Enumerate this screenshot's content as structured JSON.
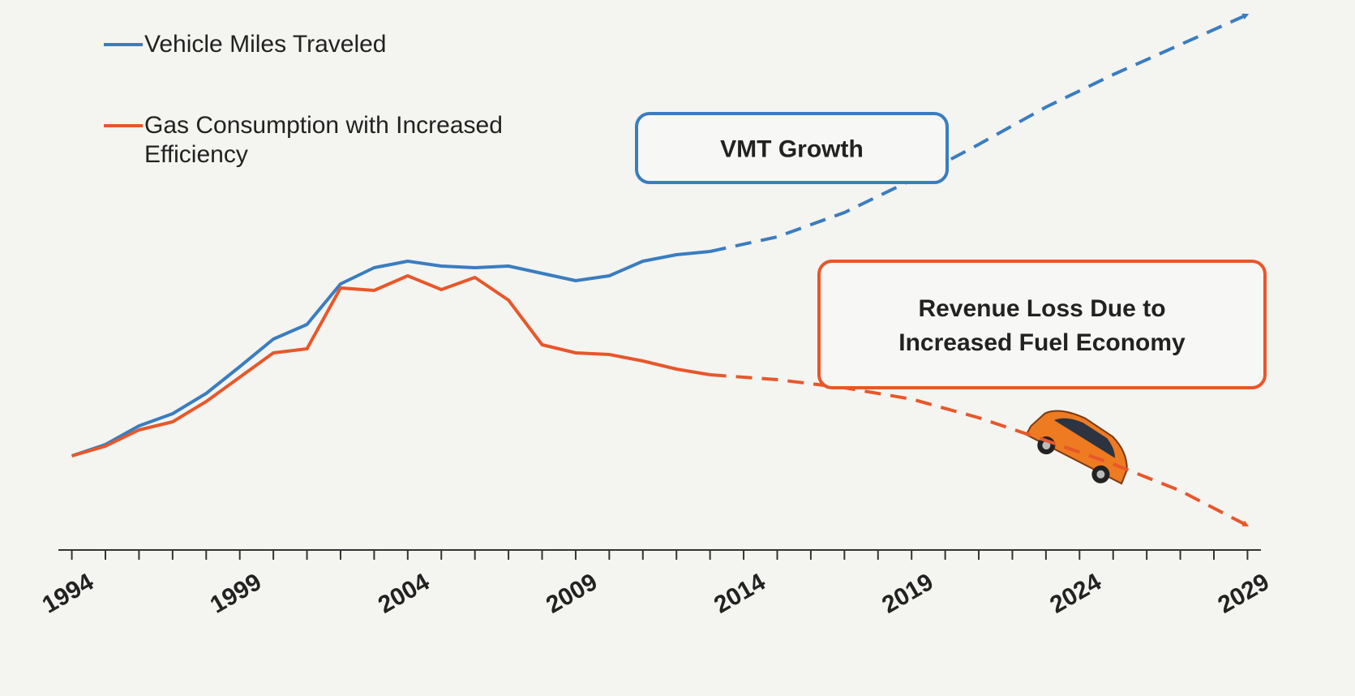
{
  "chart_data": {
    "type": "line",
    "x": [
      1994,
      1995,
      1996,
      1997,
      1998,
      1999,
      2000,
      2001,
      2002,
      2003,
      2004,
      2005,
      2006,
      2007,
      2008,
      2009,
      2010,
      2011,
      2012,
      2013
    ],
    "projection_x": [
      2013,
      2015,
      2017,
      2019,
      2021,
      2023,
      2025,
      2027,
      2029
    ],
    "series": [
      {
        "name": "Vehicle Miles Traveled",
        "color": "#3a7dc0",
        "values": [
          23.2,
          26,
          30.6,
          33.6,
          38.6,
          45.2,
          52,
          55.6,
          65.6,
          69.6,
          71.2,
          70,
          69.6,
          70,
          68.2,
          66.4,
          67.6,
          71.2,
          72.8,
          73.6
        ],
        "projection": [
          73.6,
          77.2,
          83.2,
          91.2,
          100,
          109.2,
          117.2,
          124.6,
          132
        ]
      },
      {
        "name": "Gas Consumption with Increased Efficiency",
        "color": "#e8572a",
        "values": [
          23.2,
          25.6,
          29.6,
          31.6,
          36.6,
          42.6,
          48.6,
          49.6,
          64.6,
          64,
          67.6,
          64.2,
          67.2,
          61.6,
          50.6,
          48.6,
          48.2,
          46.6,
          44.6,
          43.2
        ],
        "projection": [
          43.2,
          42,
          40,
          37.2,
          32.6,
          27,
          21.2,
          14.6,
          6
        ]
      }
    ],
    "annotations": [
      {
        "text": [
          "VMT Growth"
        ],
        "color": "#3a7dc0"
      },
      {
        "text": [
          "Revenue Loss Due to",
          "Increased Fuel Economy"
        ],
        "color": "#e8572a"
      }
    ],
    "xlim": [
      1993.6,
      2029.4
    ],
    "xticks": [
      1994,
      1999,
      2004,
      2009,
      2014,
      2019,
      2024,
      2029
    ],
    "minor_xticks": [
      1994,
      1995,
      1996,
      1997,
      1998,
      1999,
      2000,
      2001,
      2002,
      2003,
      2004,
      2005,
      2006,
      2007,
      2008,
      2009,
      2010,
      2011,
      2012,
      2013,
      2014,
      2015,
      2016,
      2017,
      2018,
      2019,
      2020,
      2021,
      2022,
      2023,
      2024,
      2025,
      2026,
      2027,
      2028,
      2029
    ],
    "ylim": [
      0,
      135
    ]
  }
}
